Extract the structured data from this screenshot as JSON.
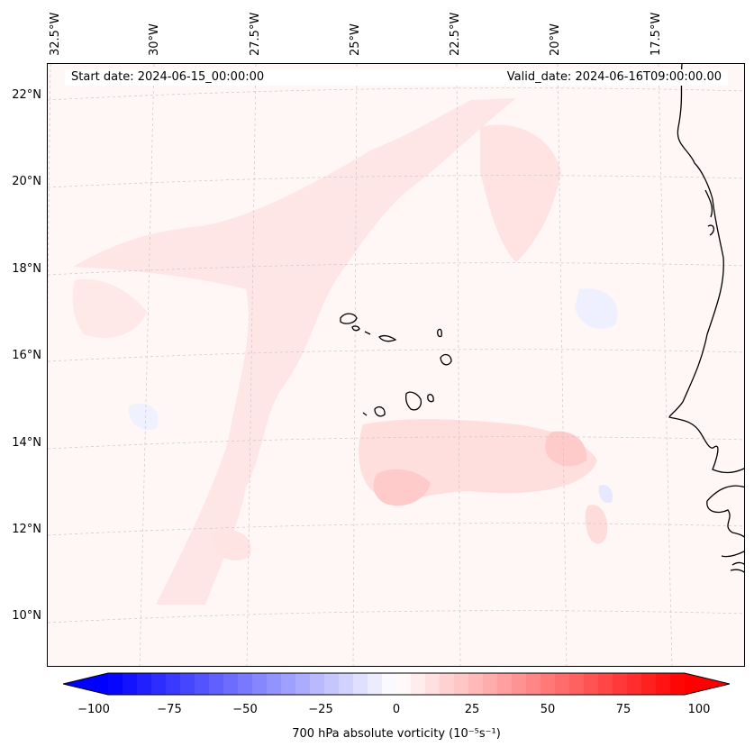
{
  "map": {
    "start_date": "Start date: 2024-06-15_00:00:00",
    "valid_date": "Valid_date: 2024-06-16T09:00:00.00",
    "lon_labels": [
      "32.5°W",
      "30°W",
      "27.5°W",
      "25°W",
      "22.5°W",
      "20°W",
      "17.5°W"
    ],
    "lat_labels": [
      "22°N",
      "20°N",
      "18°N",
      "16°N",
      "14°N",
      "12°N",
      "10°N"
    ],
    "field_colors": {
      "background": "#fff6f6",
      "light_red": "#ffe3e3",
      "mid_red": "#ffcfcf",
      "light_blue": "#eef0ff",
      "mid_blue": "#dcdcff"
    },
    "coastline_color": "#000000"
  },
  "colorbar": {
    "label": "700 hPa absolute vorticity (10⁻⁵s⁻¹)",
    "ticks": [
      "−100",
      "−75",
      "−50",
      "−25",
      "0",
      "25",
      "50",
      "75",
      "100"
    ],
    "min": -100,
    "max": 100,
    "low_color": "#0000ff",
    "mid_color": "#ffffff",
    "high_color": "#ff0000"
  }
}
